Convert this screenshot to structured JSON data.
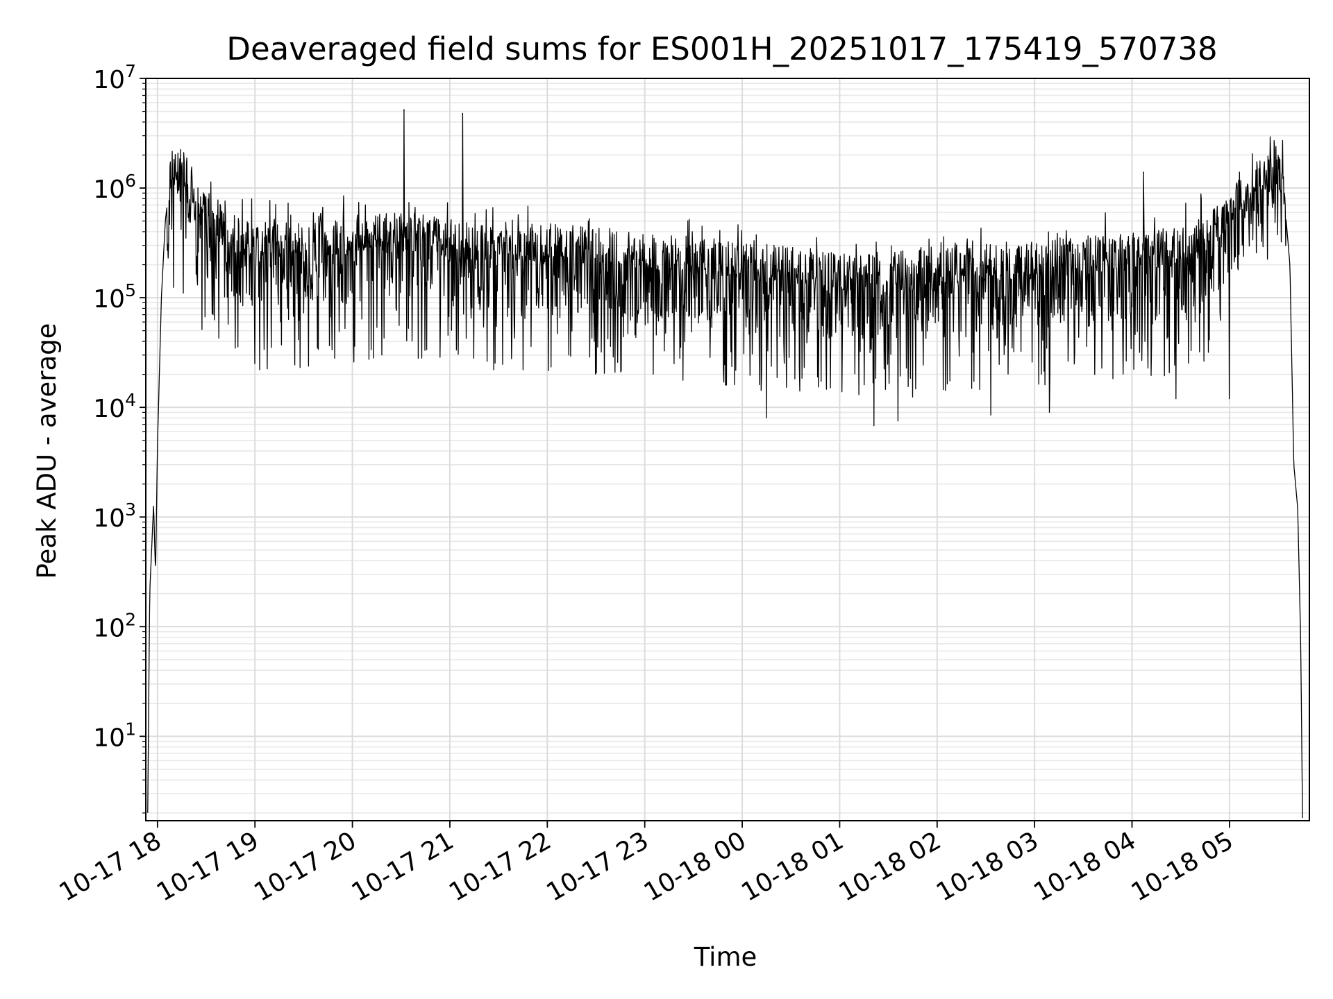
{
  "chart_data": {
    "type": "line",
    "title": "Deaveraged field sums for ES001H_20251017_175419_570738",
    "xlabel": "Time",
    "ylabel": "Peak ADU - average",
    "yscale": "log",
    "ylim": [
      1.7,
      10000000
    ],
    "xlim_hours": [
      -0.12,
      11.82
    ],
    "x_axis_note": "x values are hours since 2025-10-17 18:00",
    "grid": true,
    "y_ticks": [
      {
        "base": "10",
        "exp": "1",
        "value": 10
      },
      {
        "base": "10",
        "exp": "2",
        "value": 100
      },
      {
        "base": "10",
        "exp": "3",
        "value": 1000
      },
      {
        "base": "10",
        "exp": "4",
        "value": 10000
      },
      {
        "base": "10",
        "exp": "5",
        "value": 100000
      },
      {
        "base": "10",
        "exp": "6",
        "value": 1000000
      },
      {
        "base": "10",
        "exp": "7",
        "value": 10000000
      }
    ],
    "x_ticks": [
      {
        "label": "10-17 18",
        "hour": 0
      },
      {
        "label": "10-17 19",
        "hour": 1
      },
      {
        "label": "10-17 20",
        "hour": 2
      },
      {
        "label": "10-17 21",
        "hour": 3
      },
      {
        "label": "10-17 22",
        "hour": 4
      },
      {
        "label": "10-17 23",
        "hour": 5
      },
      {
        "label": "10-18 00",
        "hour": 6
      },
      {
        "label": "10-18 01",
        "hour": 7
      },
      {
        "label": "10-18 02",
        "hour": 8
      },
      {
        "label": "10-18 03",
        "hour": 9
      },
      {
        "label": "10-18 04",
        "hour": 10
      },
      {
        "label": "10-18 05",
        "hour": 11
      }
    ],
    "series": [
      {
        "name": "Peak ADU - average",
        "color": "#000000",
        "envelope_note": "approximate typical level of the dense noisy signal (hour, value); plotted with random dips",
        "envelope": [
          [
            -0.1,
            2
          ],
          [
            -0.08,
            200
          ],
          [
            -0.04,
            1300
          ],
          [
            -0.02,
            300
          ],
          [
            0.0,
            4500
          ],
          [
            0.04,
            100000
          ],
          [
            0.08,
            500000
          ],
          [
            0.12,
            1000000
          ],
          [
            0.16,
            1500000
          ],
          [
            0.25,
            1300000
          ],
          [
            0.35,
            900000
          ],
          [
            0.5,
            550000
          ],
          [
            0.7,
            350000
          ],
          [
            1.0,
            280000
          ],
          [
            1.5,
            280000
          ],
          [
            2.0,
            320000
          ],
          [
            2.5,
            350000
          ],
          [
            3.0,
            300000
          ],
          [
            3.5,
            260000
          ],
          [
            4.0,
            270000
          ],
          [
            4.5,
            250000
          ],
          [
            5.0,
            230000
          ],
          [
            5.5,
            210000
          ],
          [
            6.0,
            180000
          ],
          [
            6.5,
            170000
          ],
          [
            7.0,
            150000
          ],
          [
            7.5,
            150000
          ],
          [
            8.0,
            160000
          ],
          [
            8.5,
            180000
          ],
          [
            9.0,
            190000
          ],
          [
            9.5,
            210000
          ],
          [
            10.0,
            230000
          ],
          [
            10.5,
            250000
          ],
          [
            10.8,
            350000
          ],
          [
            11.0,
            550000
          ],
          [
            11.2,
            900000
          ],
          [
            11.45,
            1300000
          ],
          [
            11.55,
            1100000
          ],
          [
            11.62,
            200000
          ],
          [
            11.66,
            3000
          ],
          [
            11.7,
            1200
          ],
          [
            11.73,
            80
          ],
          [
            11.75,
            1.8
          ]
        ],
        "spikes": [
          [
            2.53,
            5200000
          ],
          [
            3.13,
            4800000
          ],
          [
            10.12,
            1400000
          ],
          [
            11.42,
            2200000
          ]
        ],
        "deep_dips": [
          [
            1.0,
            25000
          ],
          [
            1.05,
            22000
          ],
          [
            2.3,
            30000
          ],
          [
            3.45,
            22000
          ],
          [
            3.75,
            22000
          ],
          [
            5.3,
            25000
          ],
          [
            6.25,
            8000
          ],
          [
            7.35,
            6800
          ],
          [
            7.6,
            7500
          ],
          [
            8.55,
            8500
          ],
          [
            9.15,
            9000
          ],
          [
            10.45,
            12000
          ],
          [
            11.0,
            12000
          ]
        ]
      }
    ]
  }
}
